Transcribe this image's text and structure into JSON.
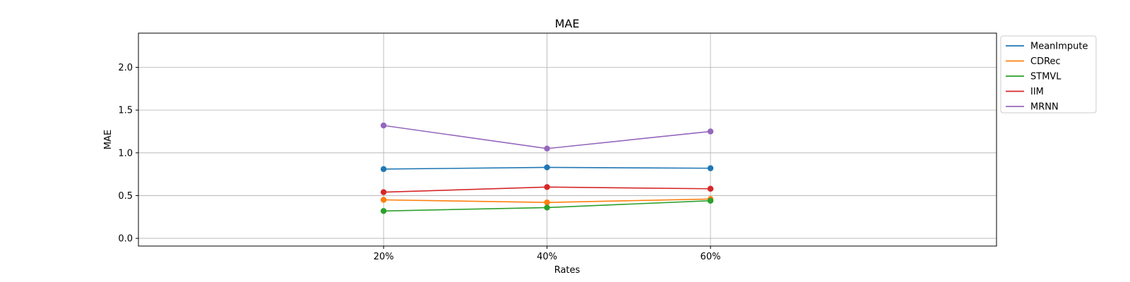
{
  "chart_data": {
    "type": "line",
    "title": "MAE",
    "xlabel": "Rates",
    "ylabel": "MAE",
    "categories": [
      "20%",
      "40%",
      "60%"
    ],
    "xlim": [
      0,
      5.25
    ],
    "x_positions": [
      1.5,
      2.5,
      3.5
    ],
    "ylim": [
      -0.09,
      2.4
    ],
    "yticks": [
      0.0,
      0.5,
      1.0,
      1.5,
      2.0
    ],
    "ytick_labels": [
      "0.0",
      "0.5",
      "1.0",
      "1.5",
      "2.0"
    ],
    "grid": true,
    "legend_position": "outside-top-right",
    "series": [
      {
        "name": "MeanImpute",
        "color": "#1f77b4",
        "values": [
          0.81,
          0.83,
          0.82
        ]
      },
      {
        "name": "CDRec",
        "color": "#ff7f0e",
        "values": [
          0.45,
          0.42,
          0.46
        ]
      },
      {
        "name": "STMVL",
        "color": "#2ca02c",
        "values": [
          0.32,
          0.36,
          0.44
        ]
      },
      {
        "name": "IIM",
        "color": "#d62728",
        "values": [
          0.54,
          0.6,
          0.58
        ]
      },
      {
        "name": "MRNN",
        "color": "#9467bd",
        "values": [
          1.32,
          1.05,
          1.25
        ]
      }
    ]
  }
}
